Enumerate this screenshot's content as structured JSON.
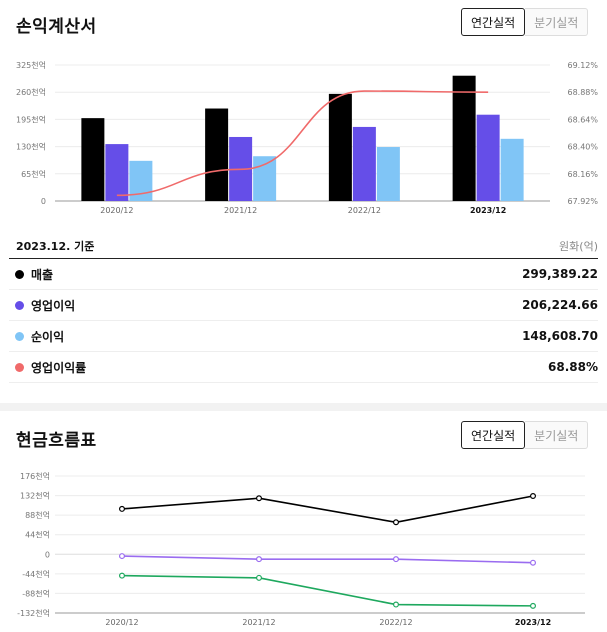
{
  "income": {
    "title": "손익계산서",
    "toggle": {
      "annual": "연간실적",
      "quarterly": "분기실적"
    },
    "basis": "2023.12. 기준",
    "unit": "원화(억)",
    "rows": [
      {
        "label": "매출",
        "value": "299,389.22",
        "color": "#000000"
      },
      {
        "label": "영업이익",
        "value": "206,224.66",
        "color": "#654ee8"
      },
      {
        "label": "순이익",
        "value": "148,608.70",
        "color": "#80c5f6"
      },
      {
        "label": "영업이익률",
        "value": "68.88%",
        "color": "#f06a6a"
      }
    ]
  },
  "cashflow": {
    "title": "현금흐름표",
    "toggle": {
      "annual": "연간실적",
      "quarterly": "분기실적"
    }
  },
  "chart_data": [
    {
      "type": "bar",
      "categories": [
        "2020/12",
        "2021/12",
        "2022/12",
        "2023/12"
      ],
      "highlight_category": "2023/12",
      "series": [
        {
          "name": "매출",
          "values": [
            198000,
            221000,
            256000,
            299389.22
          ],
          "color": "#000000"
        },
        {
          "name": "영업이익",
          "values": [
            136000,
            153000,
            177000,
            206224.66
          ],
          "color": "#654ee8"
        },
        {
          "name": "순이익",
          "values": [
            96000,
            107000,
            129000,
            148608.7
          ],
          "color": "#80c5f6"
        }
      ],
      "line_series": {
        "name": "영업이익률",
        "values": [
          67.97,
          68.2,
          68.89,
          68.88
        ],
        "color": "#f06a6a"
      },
      "y_left": {
        "ticks": [
          "325천억",
          "260천억",
          "195천억",
          "130천억",
          "65천억",
          "0"
        ],
        "ylim": [
          0,
          325000
        ]
      },
      "y_right": {
        "ticks": [
          "69.12%",
          "68.88%",
          "68.64%",
          "68.40%",
          "68.16%",
          "67.92%"
        ],
        "ylim": [
          67.92,
          69.12
        ]
      }
    },
    {
      "type": "line",
      "categories": [
        "2020/12",
        "2021/12",
        "2022/12",
        "2023/12"
      ],
      "highlight_category": "2023/12",
      "series": [
        {
          "values": [
            102000,
            126000,
            72000,
            131000
          ],
          "color": "#000000"
        },
        {
          "values": [
            -4000,
            -11000,
            -11000,
            -19000
          ],
          "color": "#9a6cf0"
        },
        {
          "values": [
            -48000,
            -53000,
            -113000,
            -116000
          ],
          "color": "#1ea85e"
        }
      ],
      "y": {
        "ticks": [
          "176천억",
          "132천억",
          "88천억",
          "44천억",
          "0",
          "-44천억",
          "-88천억",
          "-132천억"
        ],
        "ylim": [
          -132000,
          176000
        ]
      }
    }
  ]
}
